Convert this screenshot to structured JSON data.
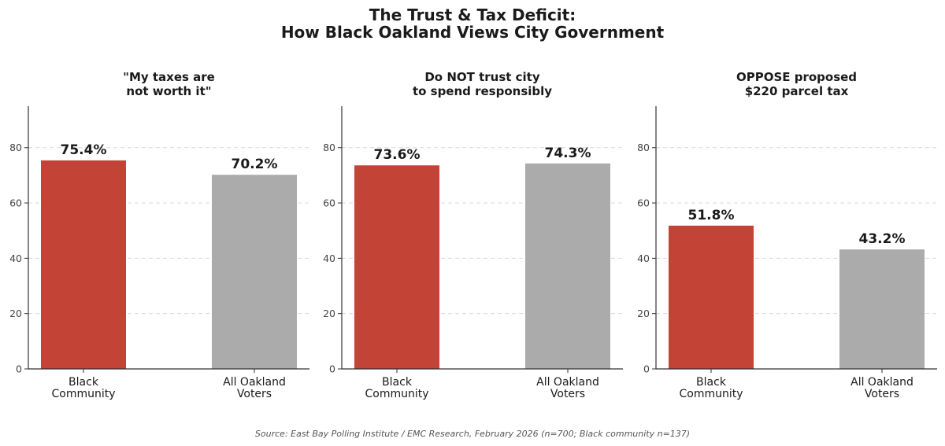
{
  "title_line1": "The Trust & Tax Deficit:",
  "title_line2": "How Black Oakland Views City Government",
  "source": "Source: East Bay Polling Institute / EMC Research, February 2026 (n=700; Black community n=137)",
  "colors": {
    "black_community": "#c0392b",
    "all_voters": "#a6a6a6"
  },
  "chart_data": [
    {
      "type": "bar",
      "title_lines": [
        "\"My taxes are",
        "not worth it\""
      ],
      "categories": [
        [
          "Black",
          "Community"
        ],
        [
          "All Oakland",
          "Voters"
        ]
      ],
      "values": [
        75.4,
        70.2
      ],
      "labels": [
        "75.4%",
        "70.2%"
      ],
      "ylim": [
        0,
        95
      ],
      "yticks": [
        0,
        20,
        40,
        60,
        80
      ],
      "grid": "y-dashed"
    },
    {
      "type": "bar",
      "title_lines": [
        "Do NOT trust city",
        "to spend responsibly"
      ],
      "categories": [
        [
          "Black",
          "Community"
        ],
        [
          "All Oakland",
          "Voters"
        ]
      ],
      "values": [
        73.6,
        74.3
      ],
      "labels": [
        "73.6%",
        "74.3%"
      ],
      "ylim": [
        0,
        95
      ],
      "yticks": [
        0,
        20,
        40,
        60,
        80
      ],
      "grid": "y-dashed"
    },
    {
      "type": "bar",
      "title_lines": [
        "OPPOSE proposed",
        "$220 parcel tax"
      ],
      "categories": [
        [
          "Black",
          "Community"
        ],
        [
          "All Oakland",
          "Voters"
        ]
      ],
      "values": [
        51.8,
        43.2
      ],
      "labels": [
        "51.8%",
        "43.2%"
      ],
      "ylim": [
        0,
        95
      ],
      "yticks": [
        0,
        20,
        40,
        60,
        80
      ],
      "grid": "y-dashed"
    }
  ]
}
